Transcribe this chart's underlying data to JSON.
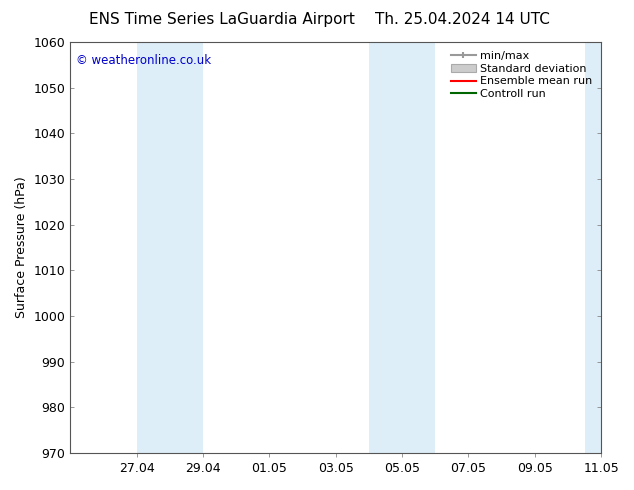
{
  "title_left": "ENS Time Series LaGuardia Airport",
  "title_right": "Th. 25.04.2024 14 UTC",
  "ylabel": "Surface Pressure (hPa)",
  "ylim": [
    970,
    1060
  ],
  "yticks": [
    970,
    980,
    990,
    1000,
    1010,
    1020,
    1030,
    1040,
    1050,
    1060
  ],
  "xtick_labels": [
    "27.04",
    "29.04",
    "01.05",
    "03.05",
    "05.05",
    "07.05",
    "09.05",
    "11.05"
  ],
  "background_color": "#ffffff",
  "plot_bg_color": "#ffffff",
  "shaded_color": "#ddeef8",
  "watermark": "© weatheronline.co.uk",
  "watermark_color": "#0000cc",
  "legend_items": [
    {
      "label": "min/max",
      "type": "errorbar",
      "color": "#999999"
    },
    {
      "label": "Standard deviation",
      "type": "fillbetween",
      "color": "#cccccc"
    },
    {
      "label": "Ensemble mean run",
      "type": "line",
      "color": "#ff0000"
    },
    {
      "label": "Controll run",
      "type": "line",
      "color": "#006600"
    }
  ],
  "title_fontsize": 11,
  "ylabel_fontsize": 9,
  "tick_fontsize": 9,
  "legend_fontsize": 8
}
